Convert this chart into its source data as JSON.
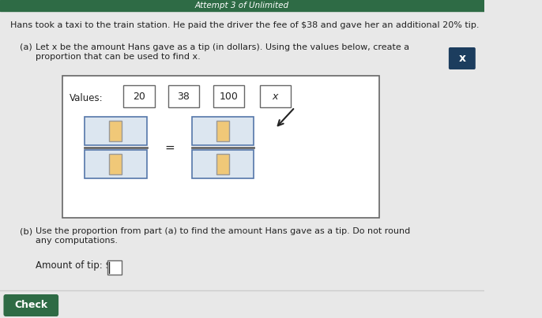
{
  "bg_color": "#e8e8e8",
  "header_bg": "#2e6b45",
  "header_text": "Attempt 3 of Unlimited",
  "header_text_color": "#ffffff",
  "main_text": "Hans took a taxi to the train station. He paid the driver the fee of $38 and gave her an additional 20% tip.",
  "part_a_label": "(a)",
  "part_a_text": "Let x be the amount Hans gave as a tip (in dollars). Using the values below, create a\nproportion that can be used to find x.",
  "values_label": "Values:",
  "values": [
    "20",
    "38",
    "100",
    "x"
  ],
  "part_b_label": "(b)",
  "part_b_text": "Use the proportion from part (a) to find the amount Hans gave as a tip. Do not round\nany computations.",
  "amount_label": "Amount of tip: $",
  "check_btn_text": "Check",
  "check_btn_bg": "#2e6b45",
  "check_btn_text_color": "#ffffff",
  "x_btn_bg": "#1c3d5e",
  "x_btn_text": "x",
  "x_btn_text_color": "#ffffff",
  "box_border_color": "#666666",
  "input_box_color": "#f0c878",
  "frac_outer_bg": "#dce6f0",
  "frac_outer_border": "#5577aa",
  "white": "#ffffff",
  "text_color": "#222222",
  "light_gray": "#cccccc"
}
